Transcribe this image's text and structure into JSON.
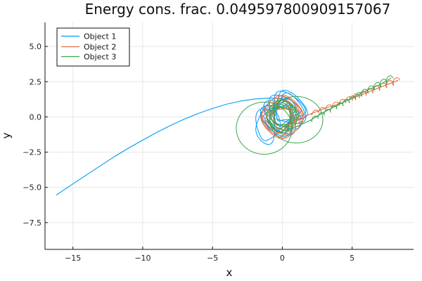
{
  "chart_data": {
    "type": "line",
    "title": "Energy cons. frac. 0.049597800909157067",
    "xlabel": "x",
    "ylabel": "y",
    "xlim": [
      -17.0,
      9.4
    ],
    "ylim": [
      -9.4,
      6.7
    ],
    "xticks": [
      -15,
      -10,
      -5,
      0,
      5
    ],
    "yticks": [
      5.0,
      2.5,
      0.0,
      -2.5,
      -5.0,
      -7.5
    ],
    "ytick_labels": [
      "5.0",
      "2.5",
      "0.0",
      "-2.5",
      "-5.0",
      "-7.5"
    ],
    "grid": true,
    "legend_position": "top-left",
    "series": [
      {
        "name": "Object 1",
        "color": "#009AFA",
        "points": [
          [
            -16.2,
            -5.55
          ],
          [
            -15.0,
            -4.75
          ],
          [
            -14.0,
            -4.1
          ],
          [
            -13.0,
            -3.45
          ],
          [
            -12.0,
            -2.8
          ],
          [
            -11.0,
            -2.2
          ],
          [
            -10.0,
            -1.65
          ],
          [
            -9.0,
            -1.1
          ],
          [
            -8.0,
            -0.6
          ],
          [
            -7.0,
            -0.15
          ],
          [
            -6.0,
            0.25
          ],
          [
            -5.0,
            0.6
          ],
          [
            -4.0,
            0.9
          ],
          [
            -3.0,
            1.12
          ],
          [
            -2.0,
            1.27
          ],
          [
            -1.0,
            1.33
          ],
          [
            -0.2,
            1.32
          ],
          [
            0.4,
            1.25
          ]
        ],
        "loops": [
          {
            "cx": 0.1,
            "cy": 0.25,
            "rx": 1.1,
            "ry": 1.05,
            "n": 8,
            "d": 0.6
          },
          {
            "cx": -1.1,
            "cy": -0.55,
            "rx": 0.75,
            "ry": 1.25,
            "n": 2,
            "d": 0.2
          }
        ]
      },
      {
        "name": "Object 2",
        "color": "#E26F46",
        "points": [
          [
            8.3,
            2.6
          ],
          [
            7.0,
            2.1
          ],
          [
            6.0,
            1.7
          ],
          [
            5.0,
            1.3
          ],
          [
            4.0,
            0.9
          ],
          [
            3.0,
            0.6
          ],
          [
            2.0,
            0.2
          ],
          [
            1.0,
            -0.2
          ],
          [
            0.3,
            -0.5
          ]
        ],
        "loops": [
          {
            "cx": 0.0,
            "cy": 0.0,
            "rx": 1.05,
            "ry": 1.05,
            "n": 9,
            "d": 0.5
          }
        ]
      },
      {
        "name": "Object 3",
        "color": "#3DA44D",
        "points": [
          [
            7.8,
            2.75
          ],
          [
            7.0,
            2.3
          ],
          [
            6.0,
            1.85
          ],
          [
            5.0,
            1.35
          ],
          [
            4.0,
            0.85
          ],
          [
            3.0,
            0.35
          ],
          [
            2.0,
            -0.25
          ],
          [
            1.0,
            -0.7
          ],
          [
            0.4,
            -0.9
          ]
        ],
        "loops": [
          {
            "cx": 1.0,
            "cy": -0.2,
            "rx": 1.9,
            "ry": 1.65,
            "n": 1,
            "d": 0.0
          },
          {
            "cx": -1.3,
            "cy": -0.8,
            "rx": 2.0,
            "ry": 1.85,
            "n": 1,
            "d": 0.0
          },
          {
            "cx": 0.0,
            "cy": 0.05,
            "rx": 0.85,
            "ry": 0.9,
            "n": 6,
            "d": 0.3
          }
        ]
      }
    ]
  }
}
